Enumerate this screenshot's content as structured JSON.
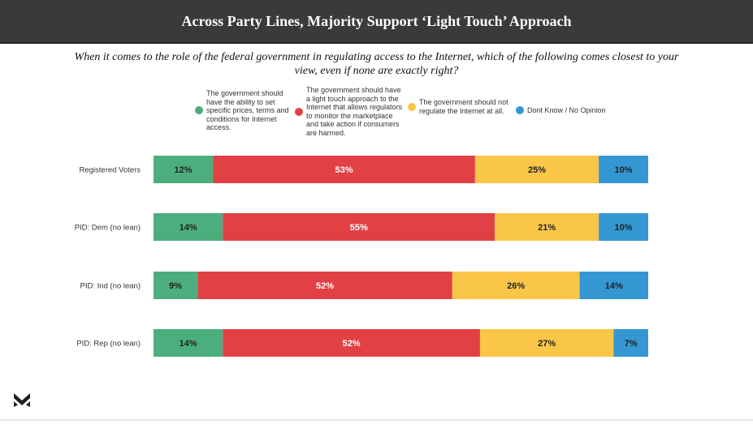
{
  "title": "Across Party Lines, Majority Support ‘Light Touch’ Approach",
  "question": "When it comes to the role of the federal government in regulating access to the Internet, which of the following comes closest to your view, even if none are exactly right?",
  "logo_icon": "m-logo-icon",
  "colors": {
    "green": "#4cae7c",
    "red": "#e14145",
    "yellow": "#f9c648",
    "blue": "#3497d1",
    "label_dark": "#222222",
    "label_light": "#ffffff"
  },
  "chart_data": {
    "type": "bar",
    "orientation": "horizontal",
    "stacked": true,
    "normalized": true,
    "legend_position": "top",
    "categories": [
      "Registered Voters",
      "PID: Dem (no lean)",
      "PID: Ind (no lean)",
      "PID: Rep (no lean)"
    ],
    "series": [
      {
        "name": "The government should have the ability to set specific prices, terms and conditions for Internet access.",
        "color": "#4cae7c",
        "values": [
          12,
          14,
          9,
          14
        ],
        "labels": [
          "12%",
          "14%",
          "9%",
          "14%"
        ]
      },
      {
        "name": "The government should have a light touch approach to the Internet that allows regulators to monitor the marketplace and take action if consumers are harmed.",
        "color": "#e14145",
        "values": [
          53,
          55,
          52,
          52
        ],
        "labels": [
          "53%",
          "55%",
          "52%",
          "52%"
        ]
      },
      {
        "name": "The government should not regulate the Internet at all.",
        "color": "#f9c648",
        "values": [
          25,
          21,
          26,
          27
        ],
        "labels": [
          "25%",
          "21%",
          "26%",
          "27%"
        ]
      },
      {
        "name": "Dont Know / No Opinion",
        "color": "#3497d1",
        "values": [
          10,
          10,
          14,
          7
        ],
        "labels": [
          "10%",
          "10%",
          "14%",
          "7%"
        ]
      }
    ]
  }
}
